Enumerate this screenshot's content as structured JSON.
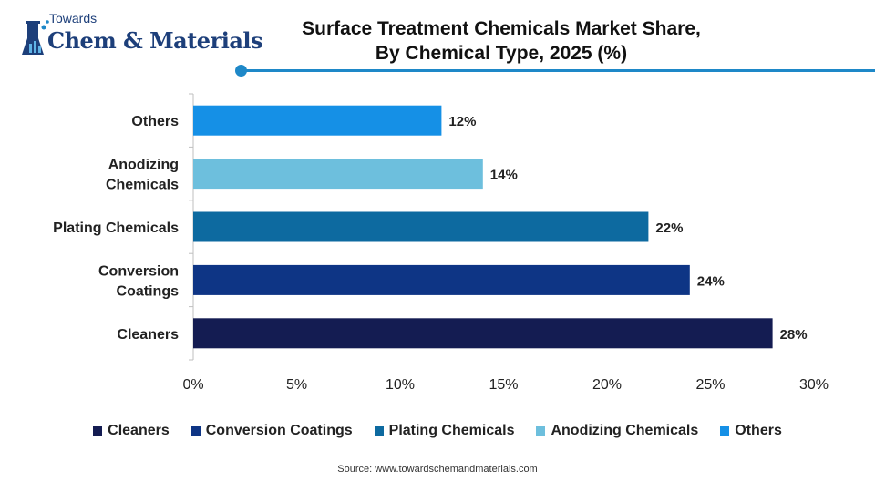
{
  "logo": {
    "line1": "Towards",
    "line2": "Chem & Materials"
  },
  "title_line1": "Surface Treatment Chemicals Market Share,",
  "title_line2": "By Chemical Type, 2025 (%)",
  "source": "Source: www.towardschemandmaterials.com",
  "colors": {
    "accent": "#1e88c8",
    "brand": "#1d3f7a"
  },
  "chart_data": {
    "type": "bar",
    "orientation": "horizontal",
    "categories": [
      "Cleaners",
      "Conversion Coatings",
      "Plating Chemicals",
      "Anodizing Chemicals",
      "Others"
    ],
    "category_labels": [
      [
        "Cleaners"
      ],
      [
        "Conversion",
        "Coatings"
      ],
      [
        "Plating Chemicals"
      ],
      [
        "Anodizing",
        "Chemicals"
      ],
      [
        "Others"
      ]
    ],
    "values": [
      28,
      24,
      22,
      14,
      12
    ],
    "value_labels": [
      "28%",
      "24%",
      "22%",
      "14%",
      "12%"
    ],
    "colors": [
      "#141c52",
      "#0e3585",
      "#0d6aa0",
      "#6dbfdd",
      "#1590e6"
    ],
    "xlim": [
      0,
      30
    ],
    "x_ticks": [
      0,
      5,
      10,
      15,
      20,
      25,
      30
    ],
    "x_tick_labels": [
      "0%",
      "5%",
      "10%",
      "15%",
      "20%",
      "25%",
      "30%"
    ],
    "grid": false,
    "legend_position": "bottom"
  }
}
